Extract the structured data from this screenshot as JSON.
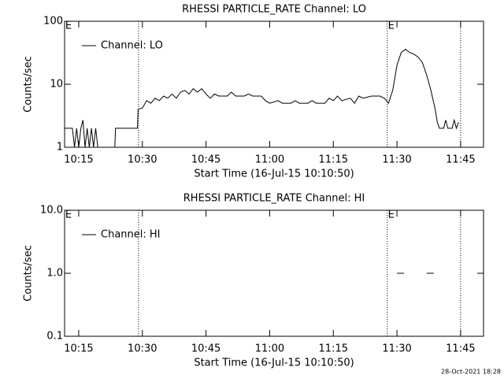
{
  "chart_data": [
    {
      "type": "line",
      "title": "RHESSI PARTICLE_RATE Channel: LO",
      "xlabel": "Start Time (16-Jul-15 10:10:50)",
      "ylabel": "Counts/sec",
      "log_y": true,
      "legend": "upper left",
      "xlim": [
        "10:11:40",
        "11:50:24"
      ],
      "xticks": [
        {
          "value": "10:15:00",
          "label": "10:15"
        },
        {
          "value": "10:30:00",
          "label": "10:30"
        },
        {
          "value": "10:45:00",
          "label": "10:45"
        },
        {
          "value": "11:00:00",
          "label": "11:00"
        },
        {
          "value": "11:15:00",
          "label": "11:15"
        },
        {
          "value": "11:30:00",
          "label": "11:30"
        },
        {
          "value": "11:45:00",
          "label": "11:45"
        }
      ],
      "ylim": [
        1,
        100
      ],
      "yticks": [
        1,
        10,
        100
      ],
      "vlines": [
        "10:29:06",
        "11:27:42",
        "11:45:00"
      ],
      "annotations": [
        {
          "text": "E",
          "x": "10:11:50"
        },
        {
          "text": "E",
          "x": "11:27:52"
        }
      ],
      "series": [
        {
          "name": "Channel: LO",
          "color": "#000000",
          "x": [
            "10:11:40",
            "10:12:30",
            "10:13:30",
            "10:14:00",
            "10:14:30",
            "10:15:00",
            "10:15:30",
            "10:16:00",
            "10:16:30",
            "10:17:00",
            "10:17:30",
            "10:18:00",
            "10:18:30",
            "10:19:00",
            "10:19:30",
            "10:23:30",
            "10:23:40",
            "10:28:50",
            "10:29:00",
            "10:30:00",
            "10:31:00",
            "10:32:00",
            "10:33:00",
            "10:34:00",
            "10:35:00",
            "10:36:00",
            "10:37:00",
            "10:38:00",
            "10:39:00",
            "10:40:00",
            "10:41:00",
            "10:42:00",
            "10:43:00",
            "10:44:00",
            "10:45:00",
            "10:46:00",
            "10:47:00",
            "10:48:00",
            "10:50:00",
            "10:51:00",
            "10:52:00",
            "10:54:00",
            "10:55:00",
            "10:56:00",
            "10:58:00",
            "10:59:00",
            "11:00:00",
            "11:02:00",
            "11:03:00",
            "11:05:00",
            "11:06:00",
            "11:07:00",
            "11:09:00",
            "11:10:00",
            "11:11:00",
            "11:13:00",
            "11:14:00",
            "11:15:00",
            "11:16:00",
            "11:17:00",
            "11:19:00",
            "11:20:00",
            "11:21:00",
            "11:22:00",
            "11:24:00",
            "11:26:00",
            "11:27:00",
            "11:28:00",
            "11:29:00",
            "11:30:00",
            "11:31:00",
            "11:32:00",
            "11:33:00",
            "11:34:00",
            "11:35:00",
            "11:36:00",
            "11:37:00",
            "11:38:00",
            "11:39:00",
            "11:39:30",
            "11:40:00",
            "11:41:00",
            "11:41:30",
            "11:42:00",
            "11:43:00",
            "11:43:30",
            "11:44:00",
            "11:44:30"
          ],
          "values": [
            2,
            2,
            2,
            1,
            2,
            1,
            2,
            2.7,
            1,
            2,
            1,
            2,
            1,
            2,
            1,
            1,
            2,
            2,
            4,
            4.2,
            5.5,
            5,
            6,
            5.5,
            6.5,
            6,
            7,
            6,
            7.5,
            8,
            7,
            8.5,
            7.5,
            8.5,
            7,
            6,
            7,
            6.5,
            6.5,
            7.5,
            6.5,
            6.5,
            7,
            6.5,
            6.5,
            5.5,
            5,
            5.5,
            5,
            5,
            5.5,
            5,
            5,
            5.5,
            5,
            5,
            6,
            5.5,
            6.5,
            5.5,
            6,
            5,
            6.5,
            6,
            6.5,
            6.5,
            6,
            5,
            8,
            20,
            32,
            36,
            32,
            30,
            27,
            22,
            14,
            8,
            4,
            2.5,
            2,
            2,
            2.7,
            2,
            2,
            2.7,
            2,
            2.5
          ]
        }
      ]
    },
    {
      "type": "line",
      "title": "RHESSI PARTICLE_RATE Channel: HI",
      "xlabel": "Start Time (16-Jul-15 10:10:50)",
      "ylabel": "Counts/sec",
      "log_y": true,
      "legend": "upper left",
      "xlim": [
        "10:11:40",
        "11:50:24"
      ],
      "xticks": [
        {
          "value": "10:15:00",
          "label": "10:15"
        },
        {
          "value": "10:30:00",
          "label": "10:30"
        },
        {
          "value": "10:45:00",
          "label": "10:45"
        },
        {
          "value": "11:00:00",
          "label": "11:00"
        },
        {
          "value": "11:15:00",
          "label": "11:15"
        },
        {
          "value": "11:30:00",
          "label": "11:30"
        },
        {
          "value": "11:45:00",
          "label": "11:45"
        }
      ],
      "ylim": [
        0.1,
        10
      ],
      "yticks": [
        0.1,
        {
          "value": 1,
          "label": "1.0"
        },
        {
          "value": 10,
          "label": "10.0"
        }
      ],
      "vlines": [
        "10:29:06",
        "11:27:42",
        "11:45:00"
      ],
      "annotations": [
        {
          "text": "E",
          "x": "10:11:50"
        },
        {
          "text": "E",
          "x": "11:27:52"
        }
      ],
      "series": [
        {
          "name": "Channel: HI",
          "color": "#000000",
          "x": [
            "11:30:00",
            "11:31:40",
            "11:33:00",
            "11:37:00",
            "11:38:40"
          ],
          "values": [
            1,
            1,
            null,
            1,
            1
          ]
        }
      ]
    }
  ],
  "footer": "28-Oct-2021 18:28"
}
